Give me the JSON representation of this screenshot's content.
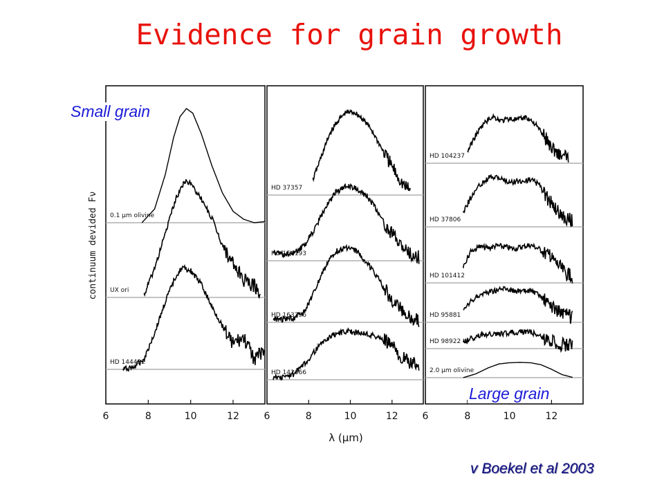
{
  "slide": {
    "title": "Evidence for grain growth",
    "small_grain_label": "Small grain",
    "large_grain_label": "Large grain",
    "citation": "v Boekel et al 2003"
  },
  "colors": {
    "title": "#e8120c",
    "annotation": "#1a1ad8",
    "citation": "#0d0d80",
    "curve": "#000000",
    "baseline": "#b0b0b0"
  },
  "chart_data": {
    "type": "line",
    "ylabel": "continuum devided Fν",
    "xlabel": "λ (μm)",
    "xlim": [
      6,
      13.5
    ],
    "x_ticks": [
      6,
      8,
      10,
      12
    ],
    "grid": false,
    "panels": [
      {
        "series": [
          {
            "name": "0.1 μm olivine",
            "model": true,
            "x": [
              7.7,
              8.3,
              8.8,
              9.2,
              9.5,
              9.8,
              10.1,
              10.5,
              11.0,
              11.5,
              12.0,
              12.5,
              13.0,
              13.5
            ],
            "y": [
              0.0,
              0.12,
              0.42,
              0.75,
              0.93,
              1.0,
              0.96,
              0.78,
              0.5,
              0.26,
              0.1,
              0.03,
              0.0,
              0.01
            ]
          },
          {
            "name": "UX ori",
            "x": [
              7.8,
              8.3,
              8.8,
              9.3,
              9.7,
              10.0,
              10.5,
              11.0,
              11.5,
              12.0,
              12.5,
              13.0,
              13.3
            ],
            "y": [
              0.02,
              0.25,
              0.55,
              0.85,
              1.0,
              0.98,
              0.85,
              0.68,
              0.45,
              0.28,
              0.15,
              0.1,
              0.05
            ]
          },
          {
            "name": "HD 144432",
            "x": [
              6.8,
              7.3,
              7.8,
              8.3,
              8.8,
              9.3,
              9.6,
              10.0,
              10.5,
              11.0,
              11.5,
              12.0,
              12.5,
              13.0,
              13.5
            ],
            "y": [
              0.0,
              0.02,
              0.1,
              0.35,
              0.65,
              0.9,
              0.98,
              0.95,
              0.82,
              0.6,
              0.42,
              0.25,
              0.3,
              0.1,
              0.18
            ]
          }
        ]
      },
      {
        "series": [
          {
            "name": "HD 37357",
            "x": [
              8.2,
              8.6,
              9.0,
              9.4,
              9.8,
              10.2,
              10.6,
              11.0,
              11.4,
              11.8,
              12.2,
              12.6,
              12.9
            ],
            "y": [
              0.18,
              0.45,
              0.72,
              0.88,
              0.98,
              0.98,
              0.9,
              0.78,
              0.6,
              0.42,
              0.25,
              0.1,
              0.05
            ]
          },
          {
            "name": "HD 150193",
            "x": [
              6.3,
              6.8,
              7.3,
              7.8,
              8.3,
              8.8,
              9.3,
              9.8,
              10.3,
              10.8,
              11.3,
              11.8,
              12.3,
              12.8,
              13.3
            ],
            "y": [
              0.12,
              0.08,
              0.1,
              0.2,
              0.42,
              0.7,
              0.9,
              0.98,
              0.95,
              0.85,
              0.65,
              0.42,
              0.25,
              0.1,
              0.05
            ]
          },
          {
            "name": "HD 163296",
            "x": [
              6.3,
              6.8,
              7.3,
              7.8,
              8.3,
              8.8,
              9.3,
              9.8,
              10.3,
              10.8,
              11.3,
              11.8,
              12.3,
              12.8,
              13.3
            ],
            "y": [
              0.05,
              0.04,
              0.06,
              0.15,
              0.42,
              0.75,
              0.95,
              1.0,
              0.95,
              0.8,
              0.6,
              0.38,
              0.2,
              0.08,
              0.02
            ]
          },
          {
            "name": "HD 142666",
            "x": [
              6.3,
              6.8,
              7.3,
              7.8,
              8.3,
              8.8,
              9.3,
              9.8,
              10.3,
              10.8,
              11.3,
              11.8,
              12.3,
              12.8,
              13.3
            ],
            "y": [
              0.05,
              0.05,
              0.12,
              0.32,
              0.6,
              0.82,
              0.95,
              1.0,
              0.98,
              0.95,
              0.88,
              0.78,
              0.55,
              0.35,
              0.3
            ]
          }
        ]
      },
      {
        "series": [
          {
            "name": "HD 104237",
            "x": [
              8.0,
              8.4,
              8.8,
              9.2,
              9.6,
              10.0,
              10.4,
              10.8,
              11.2,
              11.6,
              12.0,
              12.4,
              12.8
            ],
            "y": [
              0.25,
              0.6,
              0.85,
              1.0,
              0.9,
              0.95,
              0.92,
              0.98,
              0.85,
              0.6,
              0.35,
              0.18,
              0.1
            ]
          },
          {
            "name": "HD 37806",
            "x": [
              7.8,
              8.2,
              8.6,
              9.0,
              9.4,
              9.8,
              10.2,
              10.6,
              11.0,
              11.4,
              11.8,
              12.2,
              12.6,
              13.0
            ],
            "y": [
              0.3,
              0.62,
              0.85,
              0.98,
              1.0,
              0.92,
              0.9,
              0.92,
              0.95,
              0.85,
              0.58,
              0.35,
              0.2,
              0.12
            ]
          },
          {
            "name": "HD 101412",
            "x": [
              7.8,
              8.2,
              8.6,
              9.0,
              9.4,
              9.8,
              10.2,
              10.6,
              11.0,
              11.4,
              11.8,
              12.2,
              12.6,
              13.0
            ],
            "y": [
              0.45,
              0.85,
              0.95,
              0.92,
              0.98,
              0.95,
              0.9,
              0.95,
              1.0,
              0.9,
              0.75,
              0.55,
              0.3,
              0.15
            ]
          },
          {
            "name": "HD 95881",
            "x": [
              7.8,
              8.2,
              8.6,
              9.0,
              9.4,
              9.8,
              10.2,
              10.6,
              11.0,
              11.4,
              11.8,
              12.2,
              12.6,
              13.0
            ],
            "y": [
              0.3,
              0.6,
              0.78,
              0.85,
              0.9,
              0.95,
              0.88,
              0.85,
              0.88,
              0.75,
              0.55,
              0.38,
              0.22,
              0.12
            ]
          },
          {
            "name": "HD 98922",
            "x": [
              7.8,
              8.2,
              8.6,
              9.0,
              9.4,
              9.8,
              10.2,
              10.6,
              11.0,
              11.4,
              11.8,
              12.2,
              12.6,
              13.0
            ],
            "y": [
              0.3,
              0.5,
              0.65,
              0.72,
              0.7,
              0.75,
              0.78,
              0.8,
              0.78,
              0.62,
              0.45,
              0.3,
              0.18,
              0.1
            ]
          },
          {
            "name": "2.0 μm olivine",
            "model": true,
            "x": [
              7.8,
              8.4,
              9.0,
              9.5,
              10.0,
              10.5,
              11.0,
              11.5,
              12.0,
              12.5,
              13.0
            ],
            "y": [
              0.0,
              0.25,
              0.65,
              0.9,
              0.98,
              1.0,
              0.98,
              0.85,
              0.55,
              0.2,
              0.02
            ]
          }
        ]
      }
    ]
  }
}
